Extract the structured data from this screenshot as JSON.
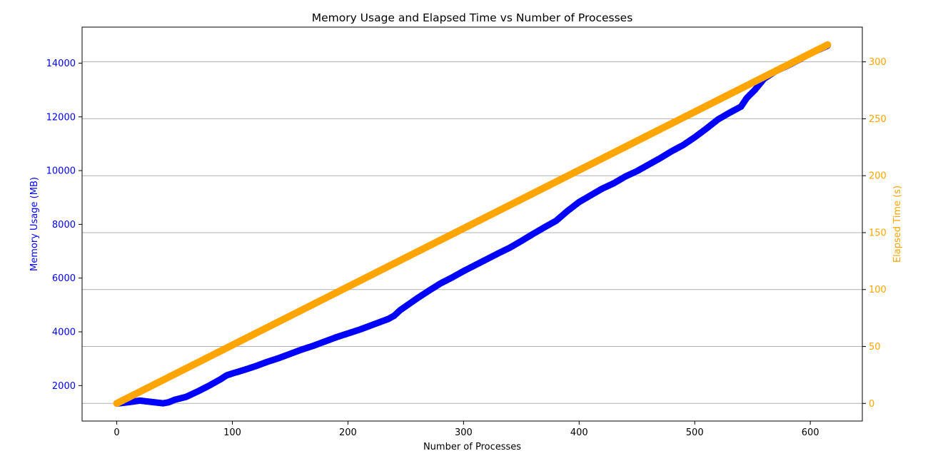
{
  "chart_data": {
    "type": "line",
    "title": "Memory Usage and Elapsed Time vs Number of Processes",
    "xlabel": "Number of Processes",
    "xlim": [
      -30,
      645
    ],
    "xticks": [
      0,
      100,
      200,
      300,
      400,
      500,
      600
    ],
    "grid": "horizontal (right axis)",
    "colors": {
      "memory": "#0000ff",
      "elapsed": "#ffa500"
    },
    "y_left": {
      "label": "Memory Usage (MB)",
      "ylim": [
        680,
        15340
      ],
      "ticks": [
        2000,
        4000,
        6000,
        8000,
        10000,
        12000,
        14000
      ],
      "color": "#0000ff"
    },
    "y_right": {
      "label": "Elapsed Time (s)",
      "ylim": [
        -15.5,
        330.5
      ],
      "ticks": [
        0,
        50,
        100,
        150,
        200,
        250,
        300
      ],
      "color": "#ffa500"
    },
    "series": [
      {
        "axis": "left",
        "style": "line-markers",
        "x": [
          0,
          10,
          20,
          30,
          40,
          45,
          50,
          60,
          70,
          80,
          90,
          95,
          100,
          110,
          120,
          130,
          140,
          150,
          160,
          170,
          180,
          190,
          200,
          210,
          220,
          230,
          235,
          240,
          245,
          250,
          260,
          270,
          280,
          290,
          300,
          310,
          320,
          330,
          340,
          350,
          360,
          370,
          380,
          390,
          400,
          410,
          420,
          430,
          440,
          450,
          460,
          470,
          480,
          490,
          500,
          510,
          520,
          530,
          540,
          545,
          548,
          552,
          560,
          570,
          580,
          590,
          600,
          615
        ],
        "y": [
          1330,
          1380,
          1440,
          1390,
          1340,
          1380,
          1470,
          1580,
          1780,
          2000,
          2240,
          2380,
          2450,
          2580,
          2720,
          2880,
          3020,
          3180,
          3340,
          3480,
          3640,
          3800,
          3940,
          4080,
          4240,
          4400,
          4480,
          4600,
          4800,
          4950,
          5250,
          5530,
          5800,
          6020,
          6260,
          6480,
          6700,
          6920,
          7130,
          7380,
          7640,
          7890,
          8130,
          8500,
          8830,
          9080,
          9330,
          9530,
          9780,
          9980,
          10220,
          10460,
          10720,
          10950,
          11240,
          11560,
          11900,
          12150,
          12380,
          12700,
          12830,
          13000,
          13420,
          13700,
          13900,
          14120,
          14360,
          14650
        ]
      },
      {
        "axis": "right",
        "style": "markers",
        "x": [
          0,
          615
        ],
        "y": [
          0,
          315
        ]
      }
    ]
  }
}
